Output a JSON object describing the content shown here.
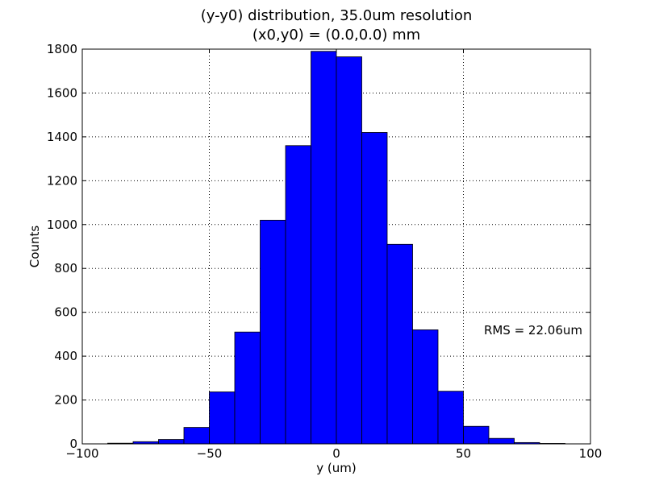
{
  "chart_data": {
    "type": "bar",
    "title": "(y-y0) distribution, 35.0um resolution",
    "subtitle": "(x0,y0) = (0.0,0.0) mm",
    "xlabel": "y (um)",
    "ylabel": "Counts",
    "xlim": [
      -100,
      100
    ],
    "ylim": [
      0,
      1800
    ],
    "xticks": [
      -100,
      -50,
      0,
      50,
      100
    ],
    "xtick_labels": [
      "−100",
      "−50",
      "0",
      "50",
      "100"
    ],
    "yticks": [
      0,
      200,
      400,
      600,
      800,
      1000,
      1200,
      1400,
      1600,
      1800
    ],
    "grid": true,
    "bar_color": "#0000ff",
    "bin_edges": [
      -90,
      -80,
      -70,
      -60,
      -50,
      -40,
      -30,
      -20,
      -10,
      0,
      10,
      20,
      30,
      40,
      50,
      60,
      70,
      80,
      90
    ],
    "values": [
      3,
      10,
      20,
      75,
      237,
      510,
      1020,
      1360,
      1790,
      1765,
      1420,
      910,
      520,
      240,
      80,
      25,
      6,
      2
    ],
    "annotation": "RMS = 22.06um"
  }
}
